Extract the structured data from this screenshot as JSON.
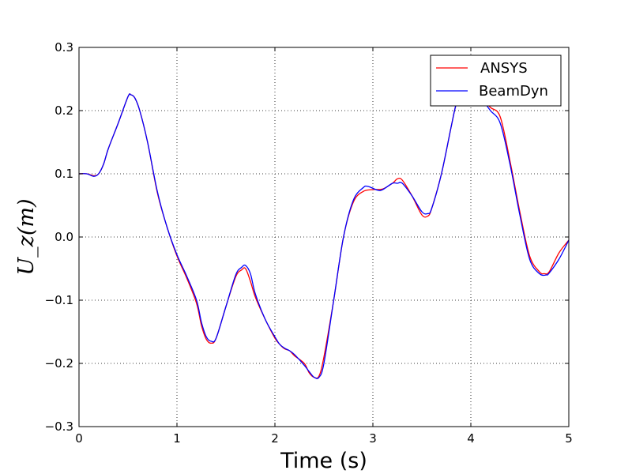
{
  "chart_data": {
    "type": "line",
    "xlabel": "Time (s)",
    "ylabel": "U_z(m)",
    "xlim": [
      0,
      5
    ],
    "ylim": [
      -0.3,
      0.3
    ],
    "xticks": [
      0,
      1,
      2,
      3,
      4,
      5
    ],
    "xtick_labels": [
      "0",
      "1",
      "2",
      "3",
      "4",
      "5"
    ],
    "yticks": [
      -0.3,
      -0.2,
      -0.1,
      0.0,
      0.1,
      0.2,
      0.3
    ],
    "ytick_labels": [
      "−0.3",
      "−0.2",
      "−0.1",
      "0.0",
      "0.1",
      "0.2",
      "0.3"
    ],
    "grid": true,
    "legend_position": "top-right",
    "series": [
      {
        "name": "ANSYS",
        "color": "#ff0000",
        "x": [
          0,
          0.08,
          0.15,
          0.2,
          0.25,
          0.3,
          0.4,
          0.5,
          0.53,
          0.57,
          0.62,
          0.7,
          0.8,
          0.9,
          1.0,
          1.1,
          1.2,
          1.25,
          1.3,
          1.35,
          1.4,
          1.5,
          1.6,
          1.66,
          1.7,
          1.75,
          1.8,
          1.9,
          2.0,
          2.05,
          2.1,
          2.15,
          2.2,
          2.3,
          2.35,
          2.4,
          2.45,
          2.5,
          2.6,
          2.7,
          2.8,
          2.9,
          3.0,
          3.1,
          3.2,
          3.25,
          3.3,
          3.4,
          3.5,
          3.56,
          3.6,
          3.7,
          3.8,
          3.85,
          3.9,
          4.0,
          4.1,
          4.2,
          4.3,
          4.4,
          4.5,
          4.6,
          4.7,
          4.75,
          4.8,
          4.9,
          5.0
        ],
        "y": [
          0.1,
          0.1,
          0.097,
          0.1,
          0.115,
          0.14,
          0.18,
          0.222,
          0.225,
          0.22,
          0.2,
          0.15,
          0.07,
          0.015,
          -0.03,
          -0.065,
          -0.105,
          -0.14,
          -0.162,
          -0.168,
          -0.16,
          -0.11,
          -0.063,
          -0.052,
          -0.05,
          -0.07,
          -0.095,
          -0.13,
          -0.16,
          -0.17,
          -0.177,
          -0.18,
          -0.188,
          -0.2,
          -0.215,
          -0.222,
          -0.22,
          -0.19,
          -0.1,
          0.0,
          0.055,
          0.072,
          0.075,
          0.076,
          0.085,
          0.092,
          0.09,
          0.065,
          0.035,
          0.033,
          0.045,
          0.1,
          0.175,
          0.21,
          0.225,
          0.23,
          0.22,
          0.205,
          0.19,
          0.12,
          0.04,
          -0.03,
          -0.055,
          -0.058,
          -0.055,
          -0.025,
          -0.005
        ]
      },
      {
        "name": "BeamDyn",
        "color": "#0000ff",
        "x": [
          0,
          0.08,
          0.15,
          0.2,
          0.25,
          0.3,
          0.4,
          0.5,
          0.53,
          0.57,
          0.62,
          0.7,
          0.8,
          0.9,
          1.0,
          1.1,
          1.2,
          1.25,
          1.3,
          1.35,
          1.4,
          1.5,
          1.6,
          1.66,
          1.7,
          1.75,
          1.8,
          1.9,
          2.0,
          2.05,
          2.1,
          2.15,
          2.2,
          2.3,
          2.35,
          2.4,
          2.45,
          2.5,
          2.6,
          2.7,
          2.8,
          2.9,
          2.95,
          3.05,
          3.1,
          3.2,
          3.25,
          3.3,
          3.4,
          3.5,
          3.56,
          3.6,
          3.7,
          3.8,
          3.85,
          3.9,
          4.0,
          4.1,
          4.2,
          4.3,
          4.4,
          4.5,
          4.6,
          4.7,
          4.77,
          4.8,
          4.9,
          5.0
        ],
        "y": [
          0.1,
          0.1,
          0.096,
          0.1,
          0.115,
          0.14,
          0.18,
          0.222,
          0.225,
          0.22,
          0.2,
          0.15,
          0.072,
          0.015,
          -0.028,
          -0.062,
          -0.1,
          -0.135,
          -0.158,
          -0.165,
          -0.16,
          -0.11,
          -0.06,
          -0.048,
          -0.045,
          -0.058,
          -0.09,
          -0.13,
          -0.158,
          -0.17,
          -0.176,
          -0.18,
          -0.186,
          -0.203,
          -0.213,
          -0.222,
          -0.222,
          -0.2,
          -0.1,
          0.0,
          0.058,
          0.078,
          0.08,
          0.074,
          0.075,
          0.085,
          0.085,
          0.085,
          0.065,
          0.04,
          0.037,
          0.045,
          0.1,
          0.175,
          0.21,
          0.225,
          0.23,
          0.22,
          0.2,
          0.18,
          0.115,
          0.035,
          -0.035,
          -0.058,
          -0.06,
          -0.057,
          -0.035,
          -0.005
        ]
      }
    ]
  }
}
